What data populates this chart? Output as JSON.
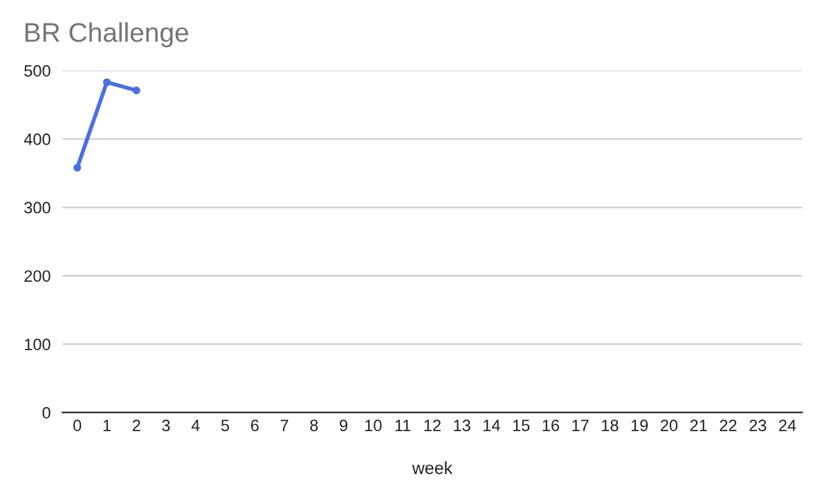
{
  "chart_data": {
    "type": "line",
    "title": "BR Challenge",
    "xlabel": "week",
    "series": [
      {
        "color": "#4a6fe3",
        "x": [
          0,
          1,
          2
        ],
        "values": [
          358,
          483,
          471
        ]
      }
    ],
    "xlim": [
      -0.5,
      24.5
    ],
    "xticks": [
      0,
      1,
      2,
      3,
      4,
      5,
      6,
      7,
      8,
      9,
      10,
      11,
      12,
      13,
      14,
      15,
      16,
      17,
      18,
      19,
      20,
      21,
      22,
      23,
      24
    ],
    "ylim": [
      0,
      500
    ],
    "yticks": [
      0,
      100,
      200,
      300,
      400,
      500
    ],
    "grid": "y",
    "marker": "circle",
    "line_style": "solid"
  }
}
